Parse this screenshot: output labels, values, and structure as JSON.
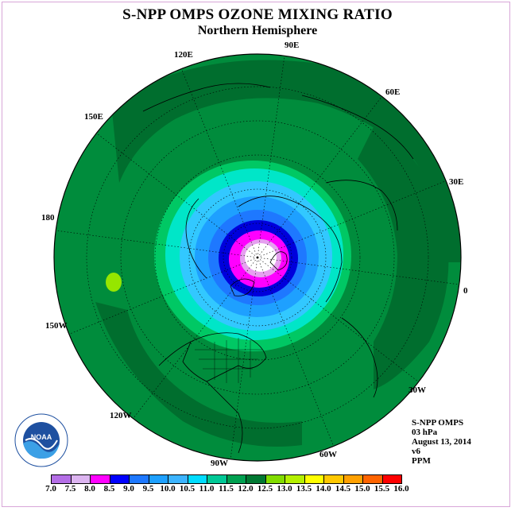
{
  "header": {
    "title": "S-NPP OMPS OZONE MIXING RATIO",
    "subtitle": "Northern Hemisphere"
  },
  "longitude_labels": [
    "90E",
    "60E",
    "30E",
    "0",
    "30W",
    "60W",
    "90W",
    "120W",
    "150W",
    "180",
    "150E",
    "120E"
  ],
  "info": {
    "instrument": "S-NPP OMPS",
    "level": "03 hPa",
    "date": "August 13, 2014",
    "version": "v6",
    "units": "PPM"
  },
  "logo": {
    "text": "NOAA",
    "ring_text": "NATIONAL OCEANIC AND ATMOSPHERIC ADMINISTRATION · U.S. DEPARTMENT OF COMMERCE"
  },
  "colorbar": {
    "ticks": [
      "7.0",
      "7.5",
      "8.0",
      "8.5",
      "9.0",
      "9.5",
      "10.0",
      "10.5",
      "11.0",
      "11.5",
      "12.0",
      "12.5",
      "13.0",
      "13.5",
      "14.0",
      "14.5",
      "15.0",
      "15.5",
      "16.0"
    ],
    "colors": [
      "#b46ee6",
      "#dcb4f0",
      "#ff00ff",
      "#0000ff",
      "#1e78ff",
      "#1ea0ff",
      "#3cb4ff",
      "#00dcff",
      "#00c896",
      "#00a050",
      "#007832",
      "#82dc00",
      "#b4f000",
      "#ffff00",
      "#ffc800",
      "#ffa000",
      "#ff6400",
      "#ff0000",
      "#966432"
    ]
  },
  "map_colors": {
    "ring_1150_1200": "#008c3c",
    "ring_1200_plus": "#006e2e",
    "ring_1100_1150": "#00c864",
    "ring_1050_1100": "#00e6c8",
    "ring_1000_1050": "#32c8ff",
    "ring_950_1000": "#1ea0ff",
    "ring_900_950": "#1e78ff",
    "ring_850_900": "#0000dc",
    "ring_800_850": "#ff00ff",
    "ring_750_800": "#e6a0f0",
    "center": "#ffffff",
    "blob": "#96e600"
  }
}
